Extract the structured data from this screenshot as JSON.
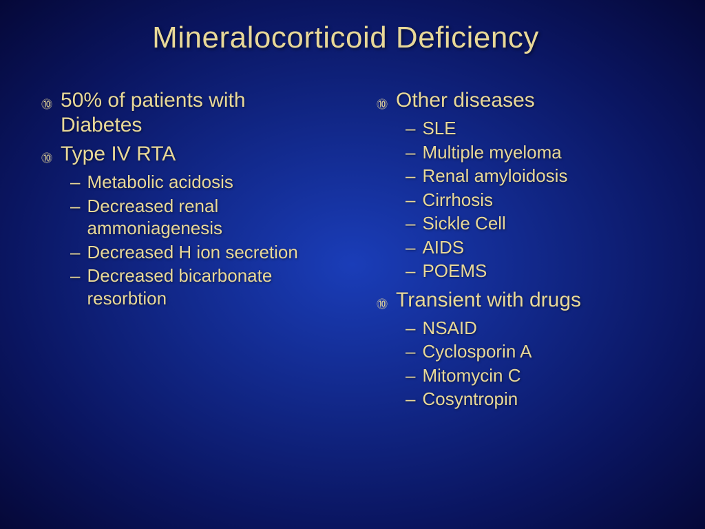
{
  "title": "Mineralocorticoid Deficiency",
  "left_column": [
    {
      "text": "50% of patients with Diabetes",
      "subitems": []
    },
    {
      "text": "Type IV RTA",
      "subitems": [
        "Metabolic acidosis",
        "Decreased renal ammoniagenesis",
        "Decreased H ion secretion",
        "Decreased bicarbonate resorbtion"
      ]
    }
  ],
  "right_column": [
    {
      "text": "Other diseases",
      "subitems": [
        "SLE",
        "Multiple myeloma",
        "Renal amyloidosis",
        "Cirrhosis",
        "Sickle Cell",
        "AIDS",
        "POEMS"
      ]
    },
    {
      "text": "Transient with drugs",
      "subitems": [
        "NSAID",
        "Cyclosporin A",
        "Mitomycin C",
        "Cosyntropin"
      ]
    }
  ],
  "styling": {
    "background_gradient_center": "#1a3db8",
    "background_gradient_outer": "#050838",
    "text_color": "#e8d898",
    "title_fontsize": 44,
    "main_text_fontsize": 30,
    "sub_text_fontsize": 26,
    "font_family": "Tahoma"
  }
}
